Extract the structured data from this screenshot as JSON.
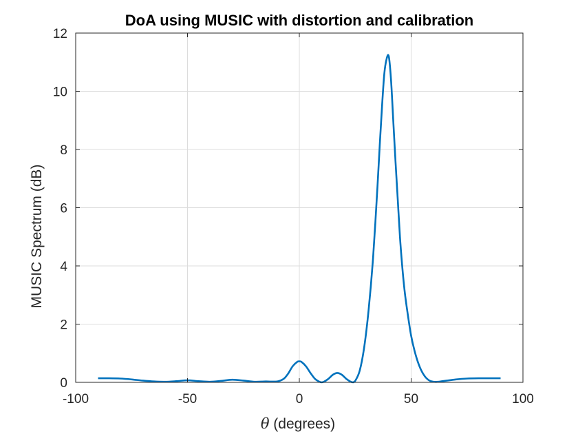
{
  "chart_data": {
    "type": "line",
    "title": "DoA using MUSIC with distortion and calibration",
    "xlabel_symbol": "θ",
    "xlabel_text": " (degrees)",
    "ylabel": "MUSIC Spectrum (dB)",
    "xlim": [
      -100,
      100
    ],
    "ylim": [
      0,
      12
    ],
    "xticks": [
      -100,
      -50,
      0,
      50,
      100
    ],
    "yticks": [
      0,
      2,
      4,
      6,
      8,
      10,
      12
    ],
    "xtick_labels": [
      "-100",
      "-50",
      "0",
      "50",
      "100"
    ],
    "ytick_labels": [
      "0",
      "2",
      "4",
      "6",
      "8",
      "10",
      "12"
    ],
    "grid": true,
    "colors": {
      "line": "#0072BD",
      "axes": "#262626",
      "grid": "#dcdcdc"
    },
    "series": [
      {
        "x": [
          -90,
          -85,
          -80,
          -75,
          -70,
          -65,
          -60,
          -55,
          -50,
          -45,
          -40,
          -35,
          -30,
          -25,
          -20,
          -15,
          -10,
          -7,
          -5,
          -3,
          -1,
          0,
          1,
          3,
          5,
          7,
          9,
          10,
          11,
          13,
          15,
          17,
          19,
          21,
          23,
          24,
          25,
          27,
          29,
          31,
          33,
          35,
          36,
          37,
          38,
          39,
          40,
          41,
          42,
          43,
          44,
          45,
          46,
          47,
          48,
          50,
          52,
          54,
          56,
          58,
          60,
          62,
          64,
          66,
          70,
          75,
          80,
          85,
          90
        ],
        "y": [
          0.14,
          0.14,
          0.13,
          0.1,
          0.06,
          0.03,
          0.02,
          0.04,
          0.07,
          0.04,
          0.02,
          0.05,
          0.09,
          0.06,
          0.02,
          0.03,
          0.03,
          0.12,
          0.3,
          0.55,
          0.7,
          0.72,
          0.7,
          0.55,
          0.32,
          0.12,
          0.02,
          0.0,
          0.02,
          0.12,
          0.26,
          0.32,
          0.26,
          0.12,
          0.02,
          0.0,
          0.05,
          0.4,
          1.2,
          2.5,
          4.3,
          6.8,
          8.2,
          9.5,
          10.6,
          11.1,
          11.2,
          10.4,
          9.0,
          7.6,
          6.3,
          5.0,
          4.0,
          3.2,
          2.6,
          1.6,
          0.95,
          0.5,
          0.22,
          0.07,
          0.02,
          0.02,
          0.04,
          0.06,
          0.1,
          0.13,
          0.14,
          0.14,
          0.14
        ]
      }
    ]
  }
}
